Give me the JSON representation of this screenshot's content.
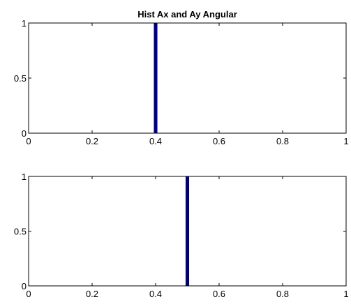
{
  "chart_data": [
    {
      "type": "bar",
      "title": "Hist Ax and Ay Angular",
      "x": [
        0.4
      ],
      "values": [
        1
      ],
      "bar_width": 0.01,
      "xlim": [
        0,
        1
      ],
      "ylim": [
        0,
        1
      ],
      "xticks": [
        0,
        0.2,
        0.4,
        0.6,
        0.8,
        1
      ],
      "xtick_labels": [
        "0",
        "0.2",
        "0.4",
        "0.6",
        "0.8",
        "1"
      ],
      "yticks": [
        0,
        0.5,
        1
      ],
      "ytick_labels": [
        "0",
        "0.5",
        "1"
      ],
      "grid": false,
      "bar_color": "#00007f"
    },
    {
      "type": "bar",
      "title": "",
      "x": [
        0.5
      ],
      "values": [
        1
      ],
      "bar_width": 0.01,
      "xlim": [
        0,
        1
      ],
      "ylim": [
        0,
        1
      ],
      "xticks": [
        0,
        0.2,
        0.4,
        0.6,
        0.8,
        1
      ],
      "xtick_labels": [
        "0",
        "0.2",
        "0.4",
        "0.6",
        "0.8",
        "1"
      ],
      "yticks": [
        0,
        0.5,
        1
      ],
      "ytick_labels": [
        "0",
        "0.5",
        "1"
      ],
      "grid": false,
      "bar_color": "#00007f"
    }
  ]
}
